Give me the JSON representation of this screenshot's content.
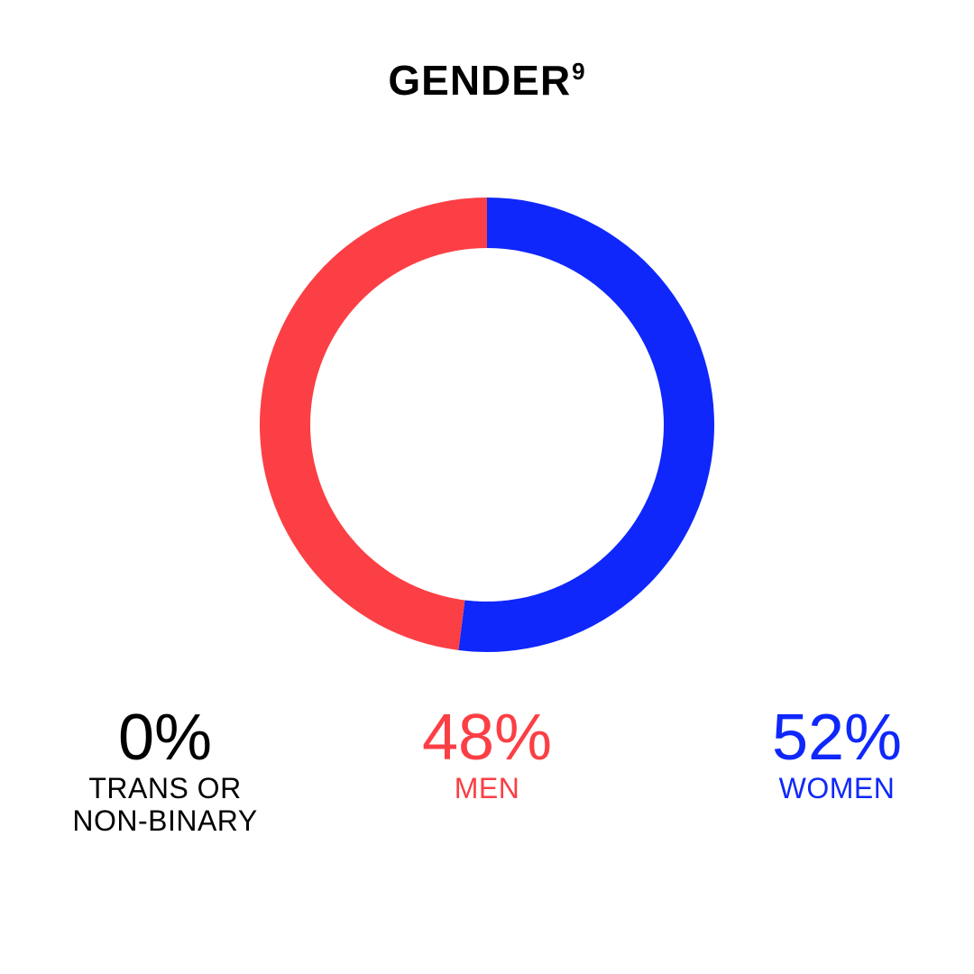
{
  "chart_data": {
    "type": "pie",
    "title": "GENDER",
    "title_footnote": "9",
    "start": "top",
    "direction": "clockwise",
    "slices": [
      {
        "key": "women",
        "percent_label": "52%",
        "label": "WOMEN",
        "value": 52,
        "color": "#0f27fb"
      },
      {
        "key": "men",
        "percent_label": "48%",
        "label": "MEN",
        "value": 48,
        "color": "#fb3f45"
      },
      {
        "key": "trans",
        "percent_label": "0%",
        "label_lines": [
          "TRANS OR",
          "NON-BINARY"
        ],
        "value": 0,
        "color": "#000000"
      }
    ]
  }
}
